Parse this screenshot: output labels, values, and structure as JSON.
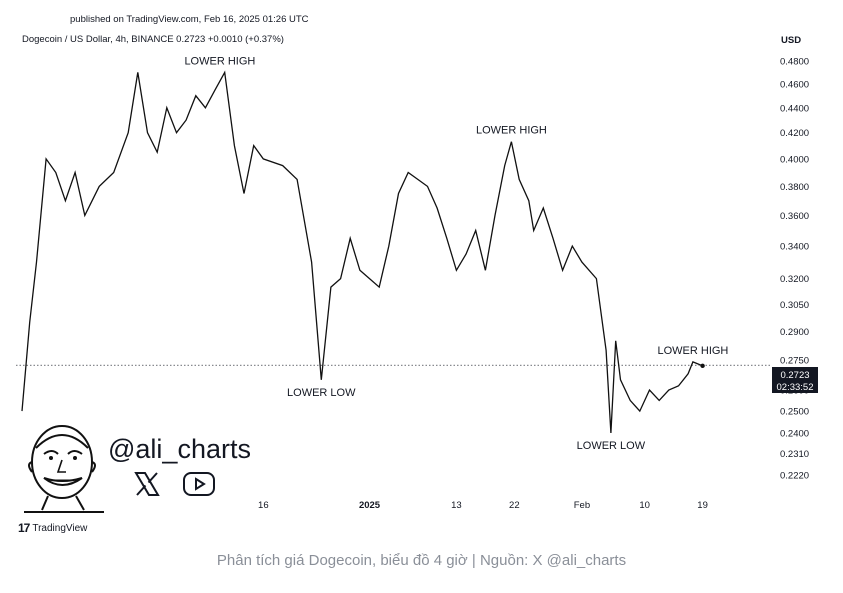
{
  "header": {
    "published": "published on TradingView.com, Feb 16, 2025 01:26 UTC",
    "symbol_line": "Dogecoin / US Dollar, 4h, BINANCE  0.2723  +0.0010 (+0.37%)",
    "currency": "USD"
  },
  "price_tag": {
    "value": "0.2723",
    "countdown": "02:33:52"
  },
  "branding": {
    "tradingview": "TradingView",
    "handle": "@ali_charts"
  },
  "icons": {
    "x": "x-logo-icon",
    "youtube": "youtube-play-icon",
    "avatar": "cartoon-face-avatar"
  },
  "caption": "Phân tích giá Dogecoin, biểu đồ 4 giờ | Nguồn: X @ali_charts",
  "chart_data": {
    "type": "line",
    "title": "",
    "series": [
      {
        "points": [
          [
            0,
            0.25
          ],
          [
            0.8,
            0.295
          ],
          [
            1.5,
            0.33
          ],
          [
            2.5,
            0.4
          ],
          [
            3.5,
            0.39
          ],
          [
            4.5,
            0.37
          ],
          [
            5.5,
            0.39
          ],
          [
            6.5,
            0.36
          ],
          [
            8,
            0.38
          ],
          [
            9.5,
            0.39
          ],
          [
            11,
            0.42
          ],
          [
            12,
            0.47
          ],
          [
            13,
            0.42
          ],
          [
            14,
            0.405
          ],
          [
            15,
            0.44
          ],
          [
            16,
            0.42
          ],
          [
            17,
            0.43
          ],
          [
            18,
            0.45
          ],
          [
            19,
            0.44
          ],
          [
            20,
            0.455
          ],
          [
            21,
            0.47
          ],
          [
            22,
            0.41
          ],
          [
            23,
            0.375
          ],
          [
            24,
            0.41
          ],
          [
            25,
            0.4
          ],
          [
            27,
            0.395
          ],
          [
            28.5,
            0.385
          ],
          [
            30,
            0.33
          ],
          [
            31,
            0.265
          ],
          [
            32,
            0.315
          ],
          [
            33,
            0.32
          ],
          [
            34,
            0.345
          ],
          [
            35,
            0.325
          ],
          [
            36,
            0.32
          ],
          [
            37,
            0.315
          ],
          [
            38,
            0.34
          ],
          [
            39,
            0.375
          ],
          [
            40,
            0.39
          ],
          [
            41,
            0.385
          ],
          [
            42,
            0.38
          ],
          [
            43,
            0.365
          ],
          [
            44,
            0.345
          ],
          [
            45,
            0.325
          ],
          [
            46,
            0.335
          ],
          [
            47,
            0.35
          ],
          [
            48,
            0.325
          ],
          [
            49,
            0.36
          ],
          [
            50,
            0.395
          ],
          [
            50.7,
            0.413
          ],
          [
            51.5,
            0.385
          ],
          [
            52.5,
            0.37
          ],
          [
            53,
            0.35
          ],
          [
            54,
            0.365
          ],
          [
            55,
            0.345
          ],
          [
            56,
            0.325
          ],
          [
            57,
            0.34
          ],
          [
            58,
            0.33
          ],
          [
            59.5,
            0.32
          ],
          [
            60.5,
            0.28
          ],
          [
            61,
            0.24
          ],
          [
            61.5,
            0.285
          ],
          [
            62,
            0.265
          ],
          [
            63,
            0.255
          ],
          [
            64,
            0.25
          ],
          [
            65,
            0.26
          ],
          [
            66,
            0.255
          ],
          [
            67,
            0.26
          ],
          [
            68,
            0.262
          ],
          [
            69,
            0.268
          ],
          [
            69.5,
            0.274
          ],
          [
            70,
            0.273
          ],
          [
            70.5,
            0.272
          ]
        ]
      }
    ],
    "x_ticks": [
      {
        "x": 25,
        "label": "16"
      },
      {
        "x": 36,
        "label": "2025"
      },
      {
        "x": 45,
        "label": "13"
      },
      {
        "x": 51,
        "label": "22"
      },
      {
        "x": 58,
        "label": "Feb"
      },
      {
        "x": 64.5,
        "label": "10"
      },
      {
        "x": 70.5,
        "label": "19"
      }
    ],
    "y_ticks": [
      "0.4800",
      "0.4600",
      "0.4400",
      "0.4200",
      "0.4000",
      "0.3800",
      "0.3600",
      "0.3400",
      "0.3200",
      "0.3050",
      "0.2900",
      "0.2750",
      "0.2600",
      "0.2500",
      "0.2400",
      "0.2310",
      "0.2220"
    ],
    "y_tick_values": [
      0.48,
      0.46,
      0.44,
      0.42,
      0.4,
      0.38,
      0.36,
      0.34,
      0.32,
      0.305,
      0.29,
      0.275,
      0.26,
      0.25,
      0.24,
      0.231,
      0.222
    ],
    "ylim": [
      0.215,
      0.49
    ],
    "xlim": [
      0,
      78
    ],
    "y_scale": "log",
    "current_price": 0.2723,
    "annotations": [
      {
        "label": "LOWER HIGH",
        "x": 20.5,
        "y": 0.47,
        "position": "above"
      },
      {
        "label": "LOWER LOW",
        "x": 31,
        "y": 0.265,
        "position": "below"
      },
      {
        "label": "LOWER HIGH",
        "x": 50.7,
        "y": 0.413,
        "position": "above"
      },
      {
        "label": "LOWER LOW",
        "x": 61,
        "y": 0.24,
        "position": "below"
      },
      {
        "label": "LOWER HIGH",
        "x": 69.5,
        "y": 0.274,
        "position": "above"
      }
    ],
    "grid": false
  }
}
